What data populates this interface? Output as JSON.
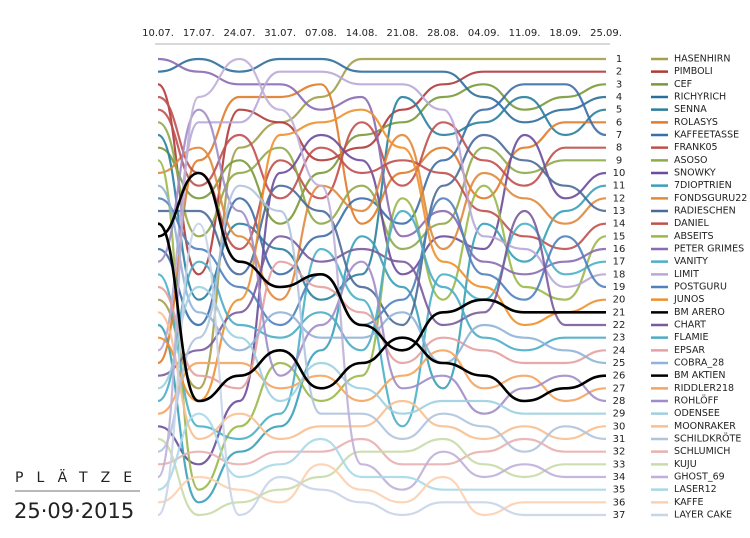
{
  "chart_data": {
    "type": "bump",
    "label": "PLÄTZE",
    "date_label": "25·09·2015",
    "x": [
      "10.07.",
      "17.07.",
      "24.07.",
      "31.07.",
      "07.08.",
      "14.08.",
      "21.08.",
      "28.08.",
      "04.09.",
      "11.09.",
      "18.09.",
      "25.09."
    ],
    "ylim": [
      1,
      37
    ],
    "y_inverted": true,
    "yticks": [
      1,
      2,
      3,
      4,
      5,
      6,
      7,
      8,
      9,
      10,
      11,
      12,
      13,
      14,
      15,
      16,
      17,
      18,
      19,
      20,
      21,
      22,
      23,
      24,
      25,
      26,
      27,
      28,
      29,
      30,
      31,
      32,
      33,
      34,
      35,
      36,
      37
    ],
    "legend": "right",
    "series": [
      {
        "name": "HASENHIRN",
        "color": "#a3a04c",
        "values": [
          20,
          27,
          8,
          6,
          4,
          1,
          1,
          1,
          1,
          1,
          1,
          1
        ]
      },
      {
        "name": "PIMBOLI",
        "color": "#b03a3a",
        "values": [
          3,
          18,
          5,
          6,
          9,
          8,
          5,
          3,
          2,
          2,
          2,
          2
        ]
      },
      {
        "name": "CEF",
        "color": "#7a9a3a",
        "values": [
          8,
          12,
          9,
          14,
          10,
          7,
          6,
          4,
          3,
          5,
          4,
          3
        ]
      },
      {
        "name": "RICHYRICH",
        "color": "#2c6e9b",
        "values": [
          2,
          1,
          2,
          1,
          1,
          2,
          2,
          2,
          4,
          6,
          5,
          4
        ]
      },
      {
        "name": "SENNA",
        "color": "#2a7f9e",
        "values": [
          7,
          20,
          14,
          16,
          20,
          18,
          4,
          7,
          6,
          4,
          7,
          5
        ]
      },
      {
        "name": "ROLASYS",
        "color": "#e07b2a",
        "values": [
          25,
          9,
          4,
          4,
          3,
          14,
          10,
          8,
          12,
          8,
          6,
          6
        ]
      },
      {
        "name": "KAFFEETASSE",
        "color": "#3b6ea8",
        "values": [
          16,
          22,
          12,
          18,
          15,
          12,
          14,
          9,
          5,
          3,
          3,
          7
        ]
      },
      {
        "name": "FRANK05",
        "color": "#c0504d",
        "values": [
          4,
          10,
          16,
          9,
          12,
          6,
          11,
          6,
          9,
          11,
          8,
          8
        ]
      },
      {
        "name": "ASOSO",
        "color": "#8faa4a",
        "values": [
          6,
          15,
          10,
          8,
          14,
          11,
          16,
          14,
          8,
          10,
          9,
          9
        ]
      },
      {
        "name": "SNOWKY",
        "color": "#6a4c9c",
        "values": [
          30,
          33,
          28,
          10,
          7,
          9,
          18,
          15,
          16,
          7,
          12,
          10
        ]
      },
      {
        "name": "7DIOPTRIEN",
        "color": "#3aa0b8",
        "values": [
          22,
          36,
          32,
          30,
          24,
          15,
          19,
          27,
          14,
          17,
          13,
          11
        ]
      },
      {
        "name": "FONDSGURU22",
        "color": "#e08a3c",
        "values": [
          10,
          8,
          15,
          20,
          11,
          13,
          7,
          16,
          10,
          12,
          14,
          12
        ]
      },
      {
        "name": "RADIESCHEN",
        "color": "#4a6a9a",
        "values": [
          13,
          13,
          18,
          11,
          13,
          19,
          22,
          11,
          7,
          9,
          11,
          13
        ]
      },
      {
        "name": "DANIEL",
        "color": "#c05050",
        "values": [
          5,
          11,
          7,
          12,
          8,
          10,
          9,
          10,
          13,
          15,
          16,
          14
        ]
      },
      {
        "name": "ABSEITS",
        "color": "#9ab84a",
        "values": [
          9,
          35,
          30,
          25,
          28,
          26,
          12,
          20,
          11,
          19,
          20,
          15
        ]
      },
      {
        "name": "PETER GRIMES",
        "color": "#8a6ab0",
        "values": [
          1,
          2,
          3,
          3,
          5,
          4,
          15,
          13,
          17,
          18,
          17,
          16
        ]
      },
      {
        "name": "VANITY",
        "color": "#4ab0c8",
        "values": [
          18,
          30,
          31,
          29,
          16,
          20,
          30,
          18,
          20,
          14,
          18,
          17
        ]
      },
      {
        "name": "LIMIT",
        "color": "#b8a8d8",
        "values": [
          24,
          6,
          6,
          2,
          2,
          3,
          3,
          5,
          15,
          16,
          19,
          18
        ]
      },
      {
        "name": "POSTGURU",
        "color": "#4f81bd",
        "values": [
          12,
          16,
          19,
          22,
          18,
          22,
          20,
          12,
          18,
          20,
          15,
          19
        ]
      },
      {
        "name": "JUNOS",
        "color": "#f0902c",
        "values": [
          23,
          28,
          20,
          7,
          6,
          5,
          8,
          17,
          19,
          22,
          21,
          20
        ]
      },
      {
        "name": "BM ARERO",
        "color": "#000000",
        "values": [
          15,
          10,
          17,
          19,
          18,
          22,
          24,
          21,
          20,
          21,
          21,
          21
        ]
      },
      {
        "name": "CHART",
        "color": "#7a5a9c",
        "values": [
          26,
          24,
          21,
          15,
          17,
          16,
          17,
          22,
          21,
          13,
          22,
          22
        ]
      },
      {
        "name": "FLAMIE",
        "color": "#4bacc6",
        "values": [
          28,
          17,
          22,
          23,
          21,
          24,
          13,
          19,
          23,
          24,
          23,
          23
        ]
      },
      {
        "name": "EPSAR",
        "color": "#e6a0a0",
        "values": [
          19,
          26,
          27,
          17,
          19,
          21,
          25,
          23,
          24,
          25,
          25,
          24
        ]
      },
      {
        "name": "COBRA_28",
        "color": "#8fb4d8",
        "values": [
          11,
          21,
          24,
          21,
          23,
          23,
          21,
          25,
          22,
          23,
          24,
          25
        ]
      },
      {
        "name": "BM AKTIEN",
        "color": "#000000",
        "values": [
          14,
          28,
          26,
          24,
          27,
          25,
          23,
          25,
          26,
          28,
          27,
          26
        ]
      },
      {
        "name": "RIDDLER218",
        "color": "#f4a460",
        "values": [
          29,
          25,
          25,
          27,
          26,
          28,
          26,
          24,
          27,
          26,
          28,
          27
        ]
      },
      {
        "name": "ROHLÖFF",
        "color": "#a08cc8",
        "values": [
          17,
          5,
          13,
          26,
          22,
          17,
          27,
          26,
          29,
          27,
          26,
          28
        ]
      },
      {
        "name": "ODENSEE",
        "color": "#9fd0e0",
        "values": [
          27,
          19,
          23,
          28,
          25,
          27,
          29,
          28,
          28,
          29,
          29,
          29
        ]
      },
      {
        "name": "MOONRAKER",
        "color": "#f8c090",
        "values": [
          21,
          31,
          29,
          31,
          30,
          30,
          28,
          30,
          31,
          30,
          31,
          30
        ]
      },
      {
        "name": "SCHILDKRÖTE",
        "color": "#b0c4de",
        "values": [
          32,
          23,
          11,
          13,
          29,
          29,
          31,
          29,
          30,
          32,
          30,
          31
        ]
      },
      {
        "name": "SCHLUMICH",
        "color": "#e8b0b0",
        "values": [
          33,
          32,
          33,
          32,
          32,
          31,
          33,
          33,
          32,
          31,
          32,
          32
        ]
      },
      {
        "name": "KUJU",
        "color": "#c8dca8",
        "values": [
          31,
          37,
          36,
          35,
          34,
          32,
          32,
          31,
          33,
          34,
          33,
          33
        ]
      },
      {
        "name": "GHOST_69",
        "color": "#c0b0d8",
        "values": [
          34,
          4,
          1,
          5,
          11,
          33,
          35,
          32,
          34,
          33,
          34,
          34
        ]
      },
      {
        "name": "LASER12",
        "color": "#a8d8e8",
        "values": [
          35,
          29,
          34,
          33,
          31,
          34,
          34,
          35,
          35,
          35,
          35,
          35
        ]
      },
      {
        "name": "KAFFE",
        "color": "#fcd0b0",
        "values": [
          36,
          34,
          35,
          36,
          33,
          35,
          36,
          34,
          37,
          36,
          36,
          36
        ]
      },
      {
        "name": "LAYER CAKE",
        "color": "#c8d4e8",
        "values": [
          37,
          14,
          37,
          34,
          35,
          36,
          37,
          36,
          36,
          37,
          37,
          37
        ]
      }
    ]
  }
}
